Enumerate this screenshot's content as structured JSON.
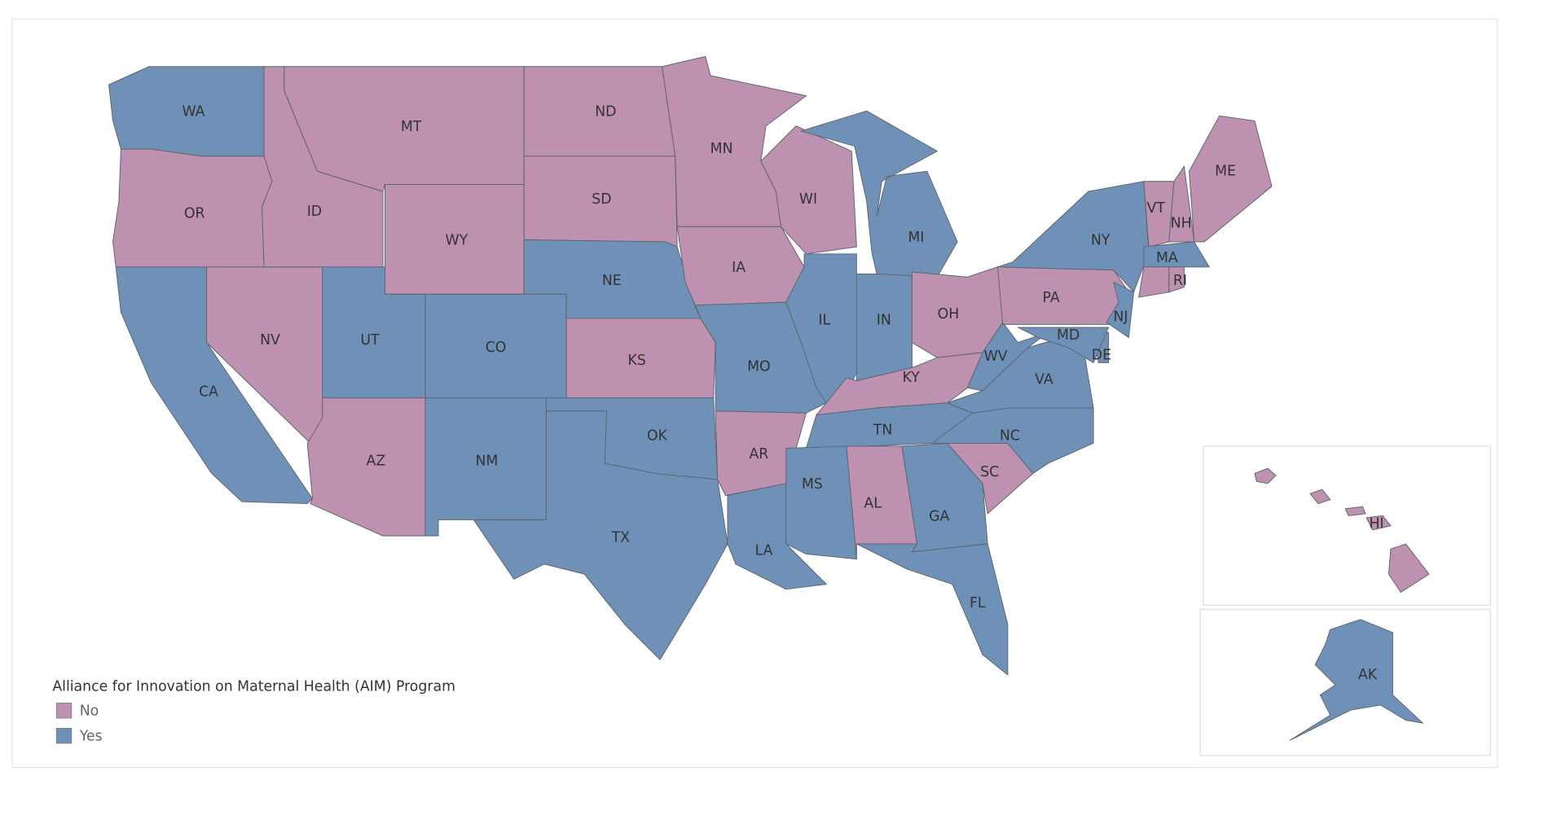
{
  "legend": {
    "title": "Alliance for Innovation on Maternal Health (AIM) Program",
    "items": [
      {
        "label": "No",
        "color": "#bf91b1"
      },
      {
        "label": "Yes",
        "color": "#6f91b8"
      }
    ]
  },
  "states": [
    {
      "label": "WA",
      "aim": "Yes"
    },
    {
      "label": "OR",
      "aim": "No"
    },
    {
      "label": "CA",
      "aim": "Yes"
    },
    {
      "label": "NV",
      "aim": "No"
    },
    {
      "label": "ID",
      "aim": "No"
    },
    {
      "label": "MT",
      "aim": "No"
    },
    {
      "label": "WY",
      "aim": "No"
    },
    {
      "label": "UT",
      "aim": "Yes"
    },
    {
      "label": "AZ",
      "aim": "No"
    },
    {
      "label": "CO",
      "aim": "Yes"
    },
    {
      "label": "NM",
      "aim": "Yes"
    },
    {
      "label": "ND",
      "aim": "No"
    },
    {
      "label": "SD",
      "aim": "No"
    },
    {
      "label": "NE",
      "aim": "Yes"
    },
    {
      "label": "KS",
      "aim": "No"
    },
    {
      "label": "OK",
      "aim": "Yes"
    },
    {
      "label": "TX",
      "aim": "Yes"
    },
    {
      "label": "MN",
      "aim": "No"
    },
    {
      "label": "IA",
      "aim": "No"
    },
    {
      "label": "MO",
      "aim": "Yes"
    },
    {
      "label": "AR",
      "aim": "No"
    },
    {
      "label": "LA",
      "aim": "Yes"
    },
    {
      "label": "WI",
      "aim": "No"
    },
    {
      "label": "IL",
      "aim": "Yes"
    },
    {
      "label": "IN",
      "aim": "Yes"
    },
    {
      "label": "MI",
      "aim": "Yes"
    },
    {
      "label": "OH",
      "aim": "No"
    },
    {
      "label": "KY",
      "aim": "No"
    },
    {
      "label": "TN",
      "aim": "Yes"
    },
    {
      "label": "MS",
      "aim": "Yes"
    },
    {
      "label": "AL",
      "aim": "No"
    },
    {
      "label": "GA",
      "aim": "Yes"
    },
    {
      "label": "FL",
      "aim": "Yes"
    },
    {
      "label": "SC",
      "aim": "No"
    },
    {
      "label": "NC",
      "aim": "Yes"
    },
    {
      "label": "VA",
      "aim": "Yes"
    },
    {
      "label": "WV",
      "aim": "Yes"
    },
    {
      "label": "PA",
      "aim": "No"
    },
    {
      "label": "NY",
      "aim": "Yes"
    },
    {
      "label": "NJ",
      "aim": "Yes"
    },
    {
      "label": "DE",
      "aim": "Yes"
    },
    {
      "label": "MD",
      "aim": "Yes"
    },
    {
      "label": "VT",
      "aim": "No"
    },
    {
      "label": "NH",
      "aim": "No"
    },
    {
      "label": "ME",
      "aim": "No"
    },
    {
      "label": "MA",
      "aim": "Yes"
    },
    {
      "label": null,
      "aim": "No"
    },
    {
      "label": "RI",
      "aim": "No"
    },
    {
      "label": "HI",
      "aim": "No"
    },
    {
      "label": "AK",
      "aim": "Yes"
    }
  ]
}
